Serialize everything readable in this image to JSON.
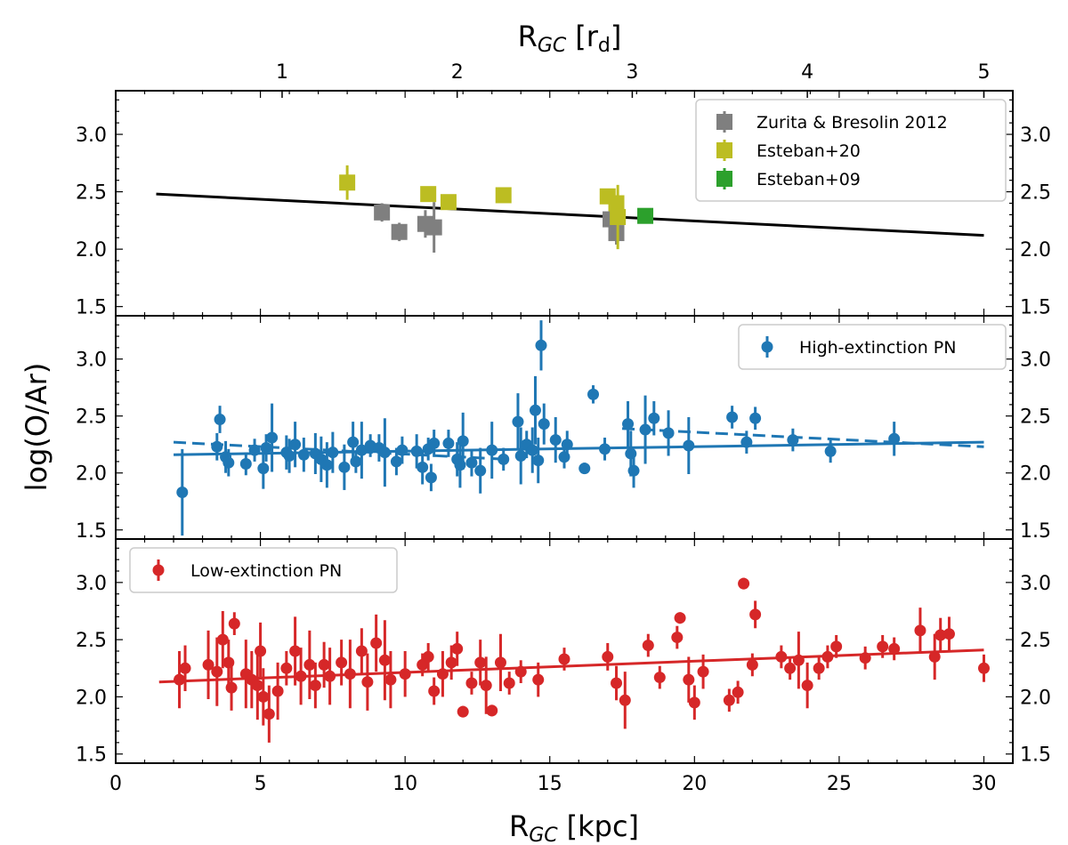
{
  "chart_data": {
    "type": "scatter",
    "xlabel_main": "R",
    "xlabel_sub": "GC",
    "xlabel_unit": "[kpc]",
    "xlabel_top_main": "R",
    "xlabel_top_sub": "GC",
    "xlabel_top_unit": "[r",
    "xlabel_top_unit_sub": "d",
    "xlabel_top_close": "]",
    "ylabel": "log(O/Ar)",
    "xlim": [
      0,
      31
    ],
    "ylim": [
      1.42,
      3.38
    ],
    "yticks": [
      "1.5",
      "2.0",
      "2.5",
      "3.0"
    ],
    "xticks": [
      "0",
      "5",
      "10",
      "15",
      "20",
      "25",
      "30"
    ],
    "top_ticks": [
      {
        "label": "1",
        "x": 5.75
      },
      {
        "label": "2",
        "x": 11.8
      },
      {
        "label": "3",
        "x": 17.85
      },
      {
        "label": "4",
        "x": 23.9
      },
      {
        "label": "5",
        "x": 30.0
      }
    ],
    "panels": [
      {
        "legend_position": "top-right",
        "fits": [
          {
            "x1": 1.4,
            "y1": 2.48,
            "x2": 30.0,
            "y2": 2.12,
            "color": "#000000",
            "style": "solid"
          }
        ],
        "series": [
          {
            "name": "Zurita & Bresolin 2012",
            "color": "#7f7f7f",
            "marker": "square",
            "points": [
              [
                9.2,
                2.32,
                0.08
              ],
              [
                9.8,
                2.15,
                0.08
              ],
              [
                10.7,
                2.22,
                0.12
              ],
              [
                11.0,
                2.19,
                0.22
              ],
              [
                17.1,
                2.26,
                0.12
              ],
              [
                17.3,
                2.14,
                0.1
              ]
            ]
          },
          {
            "name": "Esteban+20",
            "color": "#bcbd22",
            "marker": "square",
            "points": [
              [
                8.0,
                2.58,
                0.15
              ],
              [
                10.8,
                2.48,
                0.06
              ],
              [
                11.5,
                2.41,
                0.05
              ],
              [
                13.4,
                2.47,
                0.04
              ],
              [
                17.0,
                2.46,
                0.05
              ],
              [
                17.3,
                2.4,
                0.05
              ],
              [
                17.35,
                2.28,
                0.28
              ]
            ]
          },
          {
            "name": "Esteban+09",
            "color": "#2ca02c",
            "marker": "square",
            "points": [
              [
                18.3,
                2.29,
                0.05
              ]
            ]
          }
        ]
      },
      {
        "legend_position": "top-right",
        "fits": [
          {
            "x1": 2.0,
            "y1": 2.16,
            "x2": 30.0,
            "y2": 2.27,
            "color": "#1f77b4",
            "style": "solid"
          },
          {
            "x1": 2.0,
            "y1": 2.27,
            "x2": 13.5,
            "y2": 2.12,
            "color": "#1f77b4",
            "style": "dashed"
          },
          {
            "x1": 17.5,
            "y1": 2.39,
            "x2": 30.0,
            "y2": 2.23,
            "color": "#1f77b4",
            "style": "dashed"
          }
        ],
        "series": [
          {
            "name": "High-extinction PN",
            "color": "#1f77b4",
            "marker": "circle",
            "points": [
              [
                2.3,
                1.83,
                0.38
              ],
              [
                3.5,
                2.23,
                0.12
              ],
              [
                3.6,
                2.47,
                0.12
              ],
              [
                3.8,
                2.14,
                0.14
              ],
              [
                3.9,
                2.09,
                0.12
              ],
              [
                4.5,
                2.08,
                0.1
              ],
              [
                4.8,
                2.2,
                0.1
              ],
              [
                5.1,
                2.04,
                0.18
              ],
              [
                5.2,
                2.22,
                0.12
              ],
              [
                5.4,
                2.31,
                0.3
              ],
              [
                5.9,
                2.18,
                0.15
              ],
              [
                6.0,
                2.15,
                0.15
              ],
              [
                6.2,
                2.25,
                0.2
              ],
              [
                6.5,
                2.16,
                0.15
              ],
              [
                6.9,
                2.17,
                0.18
              ],
              [
                7.1,
                2.12,
                0.2
              ],
              [
                7.3,
                2.07,
                0.2
              ],
              [
                7.5,
                2.18,
                0.18
              ],
              [
                7.9,
                2.05,
                0.2
              ],
              [
                8.2,
                2.27,
                0.18
              ],
              [
                8.3,
                2.1,
                0.1
              ],
              [
                8.5,
                2.2,
                0.25
              ],
              [
                8.8,
                2.24,
                0.1
              ],
              [
                9.1,
                2.22,
                0.12
              ],
              [
                9.3,
                2.18,
                0.3
              ],
              [
                9.7,
                2.1,
                0.12
              ],
              [
                9.9,
                2.2,
                0.12
              ],
              [
                10.4,
                2.19,
                0.15
              ],
              [
                10.6,
                2.05,
                0.15
              ],
              [
                10.8,
                2.21,
                0.1
              ],
              [
                10.9,
                1.96,
                0.12
              ],
              [
                11.0,
                2.26,
                0.12
              ],
              [
                11.5,
                2.26,
                0.12
              ],
              [
                11.8,
                2.12,
                0.15
              ],
              [
                11.9,
                2.07,
                0.2
              ],
              [
                12.0,
                2.28,
                0.25
              ],
              [
                12.3,
                2.09,
                0.12
              ],
              [
                12.6,
                2.02,
                0.2
              ],
              [
                13.0,
                2.2,
                0.25
              ],
              [
                13.4,
                2.12,
                0.1
              ],
              [
                13.9,
                2.45,
                0.25
              ],
              [
                14.0,
                2.15,
                0.25
              ],
              [
                14.2,
                2.25,
                0.12
              ],
              [
                14.4,
                2.2,
                0.2
              ],
              [
                14.5,
                2.55,
                0.3
              ],
              [
                14.6,
                2.11,
                0.2
              ],
              [
                14.7,
                3.12,
                0.22
              ],
              [
                14.8,
                2.43,
                0.18
              ],
              [
                15.2,
                2.29,
                0.2
              ],
              [
                15.5,
                2.14,
                0.1
              ],
              [
                15.6,
                2.25,
                0.12
              ],
              [
                16.2,
                2.04,
                0.05
              ],
              [
                16.5,
                2.69,
                0.08
              ],
              [
                16.9,
                2.21,
                0.1
              ],
              [
                17.7,
                2.43,
                0.2
              ],
              [
                17.8,
                2.17,
                0.2
              ],
              [
                17.9,
                2.02,
                0.15
              ],
              [
                18.3,
                2.38,
                0.3
              ],
              [
                18.6,
                2.48,
                0.15
              ],
              [
                19.1,
                2.35,
                0.2
              ],
              [
                19.8,
                2.24,
                0.25
              ],
              [
                21.3,
                2.49,
                0.1
              ],
              [
                21.8,
                2.27,
                0.1
              ],
              [
                22.1,
                2.48,
                0.1
              ],
              [
                23.4,
                2.29,
                0.1
              ],
              [
                24.7,
                2.19,
                0.1
              ],
              [
                26.9,
                2.3,
                0.15
              ]
            ]
          }
        ]
      },
      {
        "legend_position": "top-left",
        "fits": [
          {
            "x1": 1.5,
            "y1": 2.13,
            "x2": 30.0,
            "y2": 2.41,
            "color": "#d62728",
            "style": "solid"
          }
        ],
        "series": [
          {
            "name": "Low-extinction PN",
            "color": "#d62728",
            "marker": "circle",
            "points": [
              [
                2.2,
                2.15,
                0.25
              ],
              [
                2.4,
                2.25,
                0.2
              ],
              [
                3.2,
                2.28,
                0.3
              ],
              [
                3.5,
                2.22,
                0.3
              ],
              [
                3.7,
                2.5,
                0.25
              ],
              [
                3.9,
                2.3,
                0.2
              ],
              [
                4.0,
                2.08,
                0.2
              ],
              [
                4.1,
                2.64,
                0.1
              ],
              [
                4.5,
                2.2,
                0.3
              ],
              [
                4.7,
                2.15,
                0.25
              ],
              [
                4.9,
                2.1,
                0.3
              ],
              [
                5.0,
                2.4,
                0.25
              ],
              [
                5.1,
                2.0,
                0.25
              ],
              [
                5.3,
                1.85,
                0.25
              ],
              [
                5.6,
                2.05,
                0.25
              ],
              [
                5.9,
                2.25,
                0.15
              ],
              [
                6.2,
                2.4,
                0.3
              ],
              [
                6.4,
                2.18,
                0.25
              ],
              [
                6.7,
                2.28,
                0.3
              ],
              [
                6.9,
                2.1,
                0.2
              ],
              [
                7.2,
                2.28,
                0.2
              ],
              [
                7.4,
                2.18,
                0.25
              ],
              [
                7.8,
                2.3,
                0.2
              ],
              [
                8.1,
                2.2,
                0.3
              ],
              [
                8.5,
                2.4,
                0.2
              ],
              [
                8.7,
                2.13,
                0.25
              ],
              [
                9.0,
                2.47,
                0.25
              ],
              [
                9.3,
                2.32,
                0.35
              ],
              [
                9.5,
                2.15,
                0.25
              ],
              [
                10.0,
                2.2,
                0.2
              ],
              [
                10.6,
                2.28,
                0.1
              ],
              [
                10.8,
                2.35,
                0.12
              ],
              [
                11.0,
                2.05,
                0.12
              ],
              [
                11.3,
                2.2,
                0.2
              ],
              [
                11.6,
                2.3,
                0.15
              ],
              [
                11.8,
                2.42,
                0.15
              ],
              [
                12.0,
                1.87,
                0.05
              ],
              [
                12.3,
                2.12,
                0.1
              ],
              [
                12.6,
                2.3,
                0.2
              ],
              [
                12.8,
                2.1,
                0.25
              ],
              [
                13.0,
                1.88,
                0.05
              ],
              [
                13.3,
                2.3,
                0.25
              ],
              [
                13.6,
                2.12,
                0.1
              ],
              [
                14.0,
                2.22,
                0.1
              ],
              [
                14.6,
                2.15,
                0.15
              ],
              [
                15.5,
                2.33,
                0.1
              ],
              [
                17.0,
                2.35,
                0.12
              ],
              [
                17.3,
                2.12,
                0.15
              ],
              [
                17.6,
                1.97,
                0.25
              ],
              [
                18.4,
                2.45,
                0.1
              ],
              [
                18.8,
                2.17,
                0.1
              ],
              [
                19.4,
                2.52,
                0.1
              ],
              [
                19.5,
                2.69,
                0.05
              ],
              [
                19.8,
                2.15,
                0.2
              ],
              [
                20.0,
                1.95,
                0.15
              ],
              [
                20.3,
                2.22,
                0.15
              ],
              [
                21.2,
                1.97,
                0.1
              ],
              [
                21.5,
                2.04,
                0.1
              ],
              [
                21.7,
                2.99,
                0.05
              ],
              [
                22.0,
                2.28,
                0.1
              ],
              [
                22.1,
                2.72,
                0.12
              ],
              [
                23.0,
                2.35,
                0.1
              ],
              [
                23.3,
                2.25,
                0.1
              ],
              [
                23.6,
                2.32,
                0.25
              ],
              [
                23.9,
                2.1,
                0.2
              ],
              [
                24.3,
                2.25,
                0.1
              ],
              [
                24.6,
                2.35,
                0.1
              ],
              [
                24.9,
                2.44,
                0.1
              ],
              [
                25.9,
                2.34,
                0.1
              ],
              [
                26.5,
                2.44,
                0.1
              ],
              [
                26.9,
                2.42,
                0.1
              ],
              [
                27.8,
                2.58,
                0.2
              ],
              [
                28.3,
                2.35,
                0.2
              ],
              [
                28.5,
                2.54,
                0.15
              ],
              [
                28.8,
                2.55,
                0.15
              ],
              [
                30.0,
                2.25,
                0.12
              ]
            ]
          }
        ]
      }
    ]
  }
}
